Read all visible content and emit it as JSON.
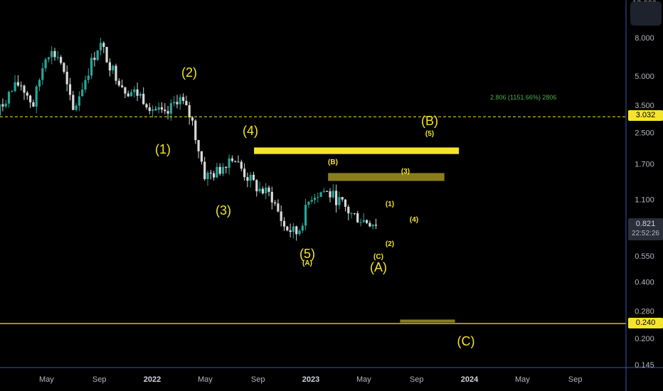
{
  "colors": {
    "background": "#000000",
    "up": "#26a69a",
    "down": "#d9d9d9",
    "wave": "#f5e52a",
    "zone_dark": "#8a7d1e",
    "axis_line": "#3f51b5",
    "measure": "#4caf50"
  },
  "price_axis": {
    "top_label": "12.000",
    "ticks": [
      "8.000",
      "5.000",
      "3.500",
      "2.500",
      "1.700",
      "1.100",
      "0.550",
      "0.400",
      "0.280",
      "0.200",
      "0.145"
    ],
    "tick_values": [
      8.0,
      5.0,
      3.5,
      2.5,
      1.7,
      1.1,
      0.55,
      0.4,
      0.28,
      0.2,
      0.145
    ],
    "scale": "log"
  },
  "time_axis": {
    "labels": [
      "May",
      "Sep",
      "2022",
      "May",
      "Sep",
      "2023",
      "May",
      "Sep",
      "2024",
      "May",
      "Sep"
    ],
    "year_flags": [
      false,
      false,
      true,
      false,
      false,
      true,
      false,
      false,
      true,
      false,
      false
    ]
  },
  "price_tags": {
    "reference": "3.032",
    "low_line": "0.240",
    "last_price": "0.821",
    "countdown": "22:52:26"
  },
  "measure_label": "2.806 (1151.66%) 2806",
  "wave_labels": [
    {
      "text": "(2)",
      "size": "large"
    },
    {
      "text": "(1)",
      "size": "large"
    },
    {
      "text": "(4)",
      "size": "large"
    },
    {
      "text": "(3)",
      "size": "large"
    },
    {
      "text": "(5)",
      "size": "large"
    },
    {
      "text": "(A)",
      "size": "small"
    },
    {
      "text": "(B)",
      "size": "small"
    },
    {
      "text": "(3)",
      "size": "small"
    },
    {
      "text": "(1)",
      "size": "small"
    },
    {
      "text": "(4)",
      "size": "small"
    },
    {
      "text": "(2)",
      "size": "small"
    },
    {
      "text": "(C)",
      "size": "small"
    },
    {
      "text": "(A)",
      "size": "large"
    },
    {
      "text": "(B)",
      "size": "large"
    },
    {
      "text": "(5)",
      "size": "small"
    },
    {
      "text": "(C)",
      "size": "large"
    }
  ],
  "chart_data": {
    "type": "candlestick",
    "scale": "log",
    "ylim": [
      0.145,
      12.0
    ],
    "price_line": 3.032,
    "horizontal_line": 0.24,
    "last_price": 0.821,
    "zones": [
      {
        "name": "bright",
        "low": 1.92,
        "high": 2.08
      },
      {
        "name": "dark-upper",
        "low": 1.38,
        "high": 1.52
      },
      {
        "name": "dark-low",
        "low": 0.243,
        "high": 0.252
      }
    ],
    "waypoints": [
      {
        "date": "2021-01",
        "price": 2.9
      },
      {
        "date": "2021-02",
        "price": 3.9
      },
      {
        "date": "2021-03",
        "price": 4.6
      },
      {
        "date": "2021-04",
        "price": 3.5
      },
      {
        "date": "2021-05",
        "price": 6.8
      },
      {
        "date": "2021-06",
        "price": 6.3
      },
      {
        "date": "2021-07",
        "price": 3.2
      },
      {
        "date": "2021-08",
        "price": 5.0
      },
      {
        "date": "2021-09",
        "price": 7.5
      },
      {
        "date": "2021-10",
        "price": 5.4
      },
      {
        "date": "2021-11",
        "price": 4.2
      },
      {
        "date": "2021-12",
        "price": 4.0
      },
      {
        "date": "2022-01",
        "price": 3.4
      },
      {
        "date": "2022-02",
        "price": 3.0
      },
      {
        "date": "2022-03",
        "price": 3.9
      },
      {
        "date": "2022-04",
        "price": 2.9
      },
      {
        "date": "2022-05",
        "price": 1.45
      },
      {
        "date": "2022-06",
        "price": 1.55
      },
      {
        "date": "2022-07",
        "price": 1.9
      },
      {
        "date": "2022-08",
        "price": 1.5
      },
      {
        "date": "2022-09",
        "price": 1.25
      },
      {
        "date": "2022-10",
        "price": 1.15
      },
      {
        "date": "2022-11",
        "price": 0.78
      },
      {
        "date": "2022-12",
        "price": 0.72
      },
      {
        "date": "2023-01",
        "price": 1.15
      },
      {
        "date": "2023-02",
        "price": 1.22
      },
      {
        "date": "2023-03",
        "price": 1.1
      },
      {
        "date": "2023-04",
        "price": 0.92
      },
      {
        "date": "2023-05",
        "price": 0.85
      },
      {
        "date": "2023-06",
        "price": 0.82
      }
    ]
  }
}
